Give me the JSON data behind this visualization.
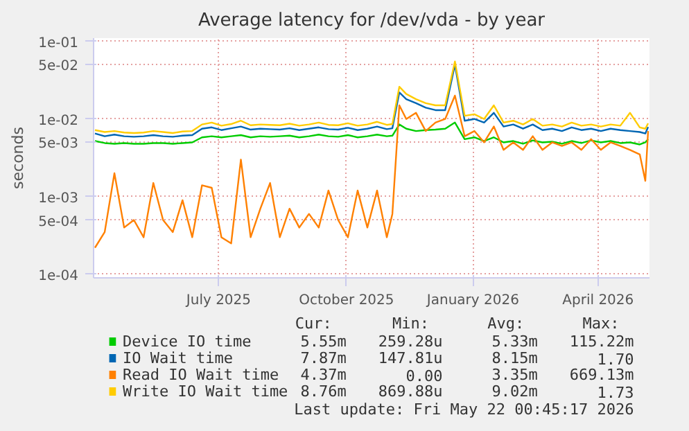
{
  "chart_data": {
    "type": "line",
    "title": "Average latency for /dev/vda - by year",
    "ylabel": "seconds",
    "log": "y",
    "grid": true,
    "legend": "bottom",
    "xlim": [
      "2025-04-17",
      "2026-05-22"
    ],
    "ylim": [
      9e-05,
      0.11
    ],
    "xticks": [
      {
        "value": "2025-07-16",
        "label": "July 2025"
      },
      {
        "value": "2025-10-16",
        "label": "October 2025"
      },
      {
        "value": "2026-01-15",
        "label": "January 2026"
      },
      {
        "value": "2026-04-15",
        "label": "April 2026"
      }
    ],
    "yticks": [
      {
        "value": 0.0001,
        "label": "1e-04"
      },
      {
        "value": 0.0005,
        "label": "5e-04"
      },
      {
        "value": 0.001,
        "label": "1e-03"
      },
      {
        "value": 0.005,
        "label": "5e-03"
      },
      {
        "value": 0.01,
        "label": "1e-02"
      },
      {
        "value": 0.05,
        "label": "5e-02"
      },
      {
        "value": 0.1,
        "label": "1e-01"
      }
    ],
    "x": [
      "2025-04-18",
      "2025-04-25",
      "2025-05-02",
      "2025-05-09",
      "2025-05-16",
      "2025-05-23",
      "2025-05-30",
      "2025-06-06",
      "2025-06-13",
      "2025-06-20",
      "2025-06-27",
      "2025-07-04",
      "2025-07-11",
      "2025-07-18",
      "2025-07-25",
      "2025-08-01",
      "2025-08-08",
      "2025-08-15",
      "2025-08-22",
      "2025-08-29",
      "2025-09-05",
      "2025-09-12",
      "2025-09-19",
      "2025-09-26",
      "2025-10-03",
      "2025-10-10",
      "2025-10-17",
      "2025-10-24",
      "2025-10-31",
      "2025-11-07",
      "2025-11-14",
      "2025-11-18",
      "2025-11-23",
      "2025-11-28",
      "2025-12-05",
      "2025-12-12",
      "2025-12-19",
      "2025-12-26",
      "2026-01-02",
      "2026-01-09",
      "2026-01-16",
      "2026-01-23",
      "2026-01-30",
      "2026-02-06",
      "2026-02-13",
      "2026-02-20",
      "2026-02-27",
      "2026-03-06",
      "2026-03-13",
      "2026-03-20",
      "2026-03-27",
      "2026-04-03",
      "2026-04-10",
      "2026-04-17",
      "2026-04-24",
      "2026-05-01",
      "2026-05-08",
      "2026-05-15",
      "2026-05-19",
      "2026-05-21"
    ],
    "series": [
      {
        "name": "Device IO time",
        "color": "#00cc00",
        "values": [
          0.0052,
          0.0049,
          0.0048,
          0.0049,
          0.0048,
          0.0048,
          0.0049,
          0.0049,
          0.0048,
          0.0049,
          0.005,
          0.0058,
          0.006,
          0.0058,
          0.006,
          0.0062,
          0.0058,
          0.006,
          0.0059,
          0.006,
          0.0061,
          0.0058,
          0.006,
          0.0063,
          0.006,
          0.0059,
          0.0062,
          0.0058,
          0.006,
          0.0063,
          0.006,
          0.0061,
          0.0085,
          0.0075,
          0.007,
          0.0072,
          0.0073,
          0.0075,
          0.009,
          0.0055,
          0.0058,
          0.0052,
          0.0058,
          0.005,
          0.0052,
          0.0048,
          0.0053,
          0.005,
          0.0051,
          0.0048,
          0.0052,
          0.0049,
          0.0053,
          0.005,
          0.0052,
          0.0049,
          0.005,
          0.0047,
          0.005,
          0.0055
        ]
      },
      {
        "name": "IO Wait time",
        "color": "#0066b3",
        "values": [
          0.0065,
          0.006,
          0.0063,
          0.006,
          0.0059,
          0.006,
          0.0062,
          0.006,
          0.0059,
          0.0061,
          0.0062,
          0.0075,
          0.0078,
          0.0072,
          0.0076,
          0.008,
          0.0073,
          0.0075,
          0.0074,
          0.0073,
          0.0076,
          0.0072,
          0.0075,
          0.0078,
          0.0074,
          0.0073,
          0.0077,
          0.0072,
          0.0075,
          0.008,
          0.0074,
          0.0076,
          0.022,
          0.018,
          0.016,
          0.014,
          0.013,
          0.013,
          0.05,
          0.0095,
          0.01,
          0.009,
          0.012,
          0.008,
          0.0085,
          0.0075,
          0.0085,
          0.0072,
          0.0075,
          0.007,
          0.0078,
          0.0072,
          0.0075,
          0.007,
          0.0075,
          0.0072,
          0.007,
          0.0068,
          0.0065,
          0.0079
        ]
      },
      {
        "name": "Read IO Wait time",
        "color": "#ff8000",
        "values": [
          0.00022,
          0.00035,
          0.002,
          0.0004,
          0.0005,
          0.0003,
          0.0015,
          0.0005,
          0.00035,
          0.0009,
          0.0003,
          0.0014,
          0.0013,
          0.0003,
          0.00025,
          0.003,
          0.0003,
          0.0007,
          0.0015,
          0.0003,
          0.0007,
          0.0004,
          0.0006,
          0.0004,
          0.0012,
          0.0005,
          0.0003,
          0.0012,
          0.0004,
          0.0012,
          0.0003,
          0.0006,
          0.015,
          0.01,
          0.012,
          0.007,
          0.009,
          0.01,
          0.02,
          0.006,
          0.007,
          0.005,
          0.008,
          0.004,
          0.005,
          0.004,
          0.006,
          0.004,
          0.005,
          0.0045,
          0.005,
          0.004,
          0.0055,
          0.004,
          0.005,
          0.0045,
          0.004,
          0.0035,
          0.0016,
          0.007
        ]
      },
      {
        "name": "Write IO Wait time",
        "color": "#ffcc00",
        "values": [
          0.0072,
          0.0068,
          0.007,
          0.0067,
          0.0066,
          0.0067,
          0.007,
          0.0068,
          0.0066,
          0.0069,
          0.007,
          0.0085,
          0.009,
          0.0082,
          0.0086,
          0.0095,
          0.0083,
          0.0085,
          0.0084,
          0.0083,
          0.0087,
          0.0082,
          0.0085,
          0.009,
          0.0084,
          0.0083,
          0.0088,
          0.0082,
          0.0085,
          0.0092,
          0.0084,
          0.0086,
          0.026,
          0.021,
          0.018,
          0.016,
          0.015,
          0.015,
          0.055,
          0.011,
          0.0115,
          0.01,
          0.015,
          0.009,
          0.0095,
          0.0085,
          0.01,
          0.0082,
          0.0085,
          0.008,
          0.009,
          0.0082,
          0.0085,
          0.008,
          0.0085,
          0.0082,
          0.012,
          0.0078,
          0.0075,
          0.0088
        ]
      }
    ],
    "annotations": [
      "Cur:",
      "Min:",
      "Avg:",
      "Max:",
      "5.55m",
      "259.28u",
      "5.33m",
      "115.22m",
      "7.87m",
      "147.81u",
      "8.15m",
      "1.70",
      "4.37m",
      "0.00",
      "3.35m",
      "669.13m",
      "8.76m",
      "869.88u",
      "9.02m",
      "1.73",
      "Last update: Fri May 22 00:45:17 2026"
    ]
  }
}
